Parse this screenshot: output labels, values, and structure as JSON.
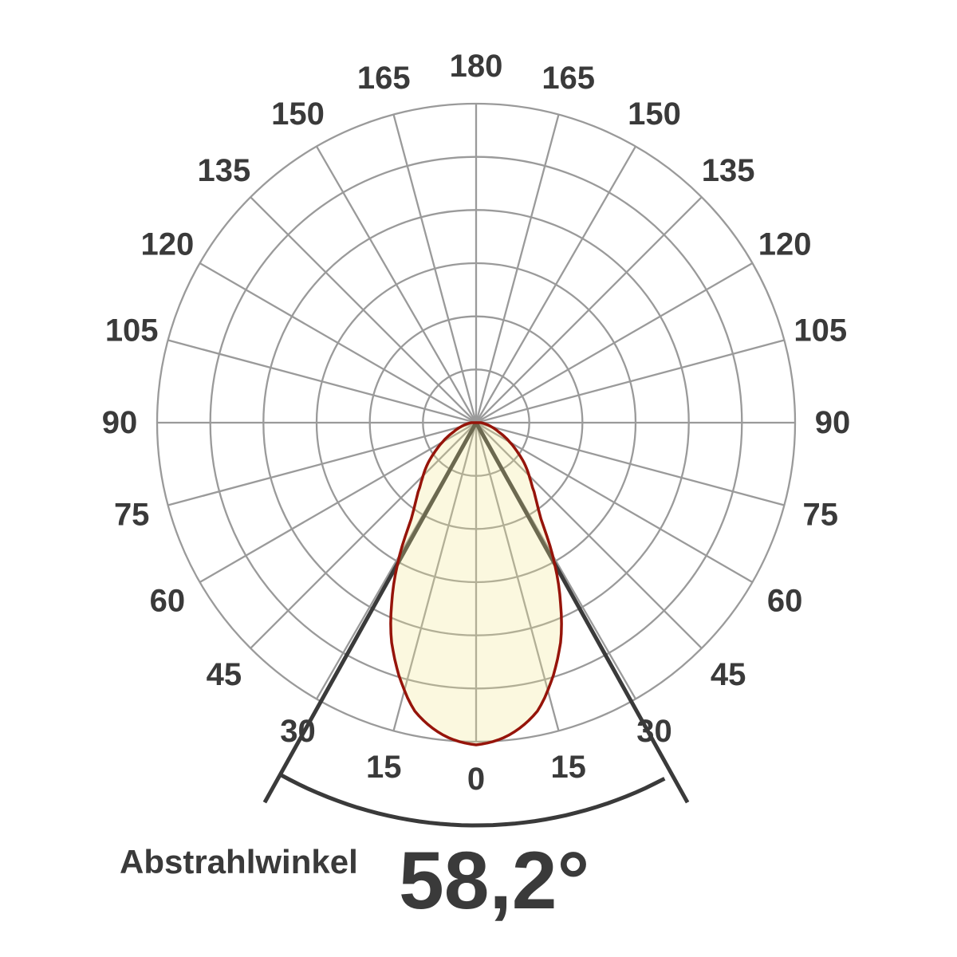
{
  "chart_data": {
    "type": "polar",
    "title": "Abstrahlwinkel",
    "beam_angle_label": "58,2°",
    "beam_angle_deg": 58.2,
    "angle_unit": "degrees",
    "angle_tick_step_deg": 15,
    "angle_labels": [
      "0",
      "15",
      "30",
      "45",
      "60",
      "75",
      "90",
      "105",
      "120",
      "135",
      "150",
      "165",
      "180"
    ],
    "labels_mirrored_left_right": true,
    "zero_direction": "down",
    "ring_count": 6,
    "radial_axis": {
      "min": 0.0,
      "max": 1.0,
      "note": "relative luminous intensity; outer ring = 100%"
    },
    "grid": true,
    "intensity_profile": {
      "half_intensity_angle_deg": 29.1,
      "peak_norm": 1.01,
      "points_angle_vs_intensity": [
        [
          0,
          1.0
        ],
        [
          6,
          0.975
        ],
        [
          12,
          0.915
        ],
        [
          17,
          0.82
        ],
        [
          21.5,
          0.72
        ],
        [
          25,
          0.62
        ],
        [
          29.1,
          0.5
        ],
        [
          34,
          0.36
        ],
        [
          40,
          0.28
        ],
        [
          44,
          0.24
        ],
        [
          50,
          0.195
        ],
        [
          55,
          0.155
        ],
        [
          60,
          0.12
        ],
        [
          68,
          0.075
        ],
        [
          78,
          0.04
        ],
        [
          90,
          0.015
        ]
      ]
    },
    "beam_angle_markers": {
      "line_angle_deg": 29.1,
      "arc_between_lines": true
    },
    "colors": {
      "background": "#ffffff",
      "grid": "#9a9a9a",
      "curve_outline": "#96140a",
      "curve_fill": "rgba(240,230,140,0.28)",
      "beam_marker": "#3a3a3a",
      "text": "#3a3a3a"
    }
  }
}
